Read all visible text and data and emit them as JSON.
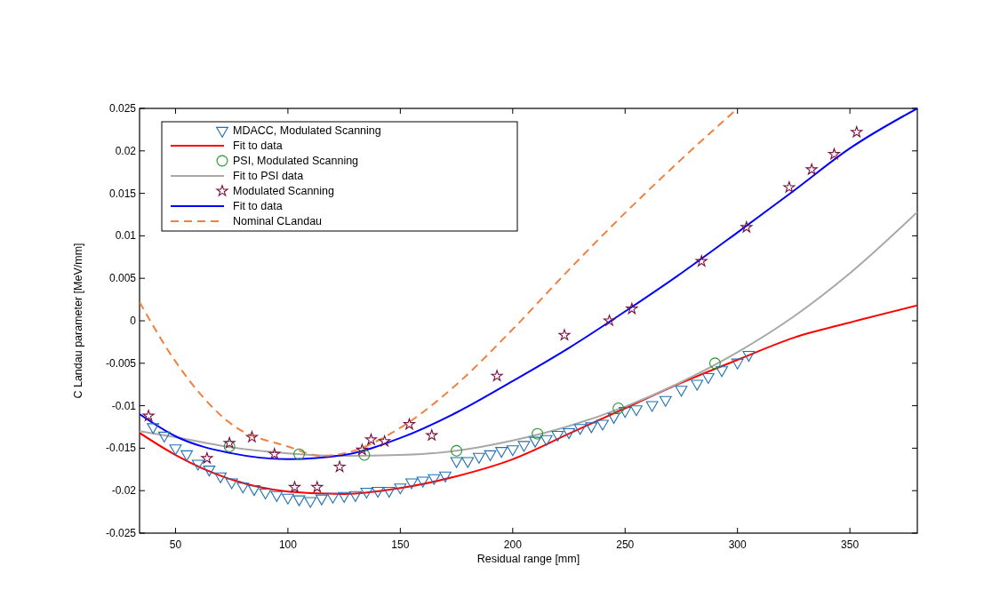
{
  "chart_data": {
    "type": "scatter",
    "xlabel": "Residual range [mm]",
    "ylabel": "C Landau parameter [MeV/mm]",
    "xlim": [
      34,
      380
    ],
    "xticks": [
      50,
      100,
      150,
      200,
      250,
      300,
      350
    ],
    "ylim": [
      -0.025,
      0.025
    ],
    "yticks": [
      -0.025,
      -0.02,
      -0.015,
      -0.01,
      -0.005,
      0,
      0.005,
      0.01,
      0.015,
      0.02,
      0.025
    ],
    "grid": false,
    "legend": "top left",
    "series": [
      {
        "name": "MDACC, Modulated Scanning",
        "marker": "triangle",
        "color": "#1f6fb4",
        "x": [
          40,
          45,
          50,
          55,
          60,
          65,
          70,
          75,
          80,
          85,
          90,
          95,
          100,
          105,
          110,
          115,
          120,
          125,
          130,
          135,
          140,
          145,
          150,
          155,
          160,
          165,
          170,
          175,
          180,
          185,
          190,
          195,
          200,
          205,
          210,
          215,
          220,
          225,
          230,
          235,
          240,
          245,
          250,
          255,
          262,
          268,
          275,
          282,
          287,
          293,
          300,
          305
        ],
        "values": [
          -0.0125,
          -0.0135,
          -0.015,
          -0.0157,
          -0.0168,
          -0.0175,
          -0.0183,
          -0.019,
          -0.0195,
          -0.0198,
          -0.0202,
          -0.0205,
          -0.0208,
          -0.021,
          -0.0212,
          -0.0209,
          -0.0207,
          -0.0206,
          -0.0205,
          -0.0201,
          -0.02,
          -0.02,
          -0.0196,
          -0.019,
          -0.0188,
          -0.0185,
          -0.0182,
          -0.0165,
          -0.0165,
          -0.016,
          -0.0157,
          -0.0153,
          -0.0151,
          -0.0146,
          -0.0141,
          -0.0139,
          -0.0134,
          -0.0131,
          -0.0126,
          -0.0124,
          -0.0121,
          -0.0113,
          -0.0106,
          -0.0104,
          -0.0099,
          -0.0093,
          -0.0081,
          -0.0074,
          -0.0066,
          -0.0058,
          -0.0049,
          -0.004
        ]
      },
      {
        "name": "Fit to data",
        "type": "line",
        "line_style": "solid",
        "color": "#ff0000",
        "x": [
          34,
          50,
          75,
          100,
          125,
          150,
          175,
          200,
          225,
          250,
          275,
          300,
          325,
          350,
          380
        ],
        "values": [
          -0.0132,
          -0.0158,
          -0.0187,
          -0.0201,
          -0.0204,
          -0.0197,
          -0.0183,
          -0.0163,
          -0.0133,
          -0.0103,
          -0.0073,
          -0.0046,
          -0.002,
          -0.0002,
          0.0018
        ]
      },
      {
        "name": "PSI, Modulated Scanning",
        "marker": "circle",
        "color": "#22962a",
        "x": [
          74,
          105,
          134,
          175,
          211,
          247,
          290
        ],
        "values": [
          -0.0148,
          -0.0157,
          -0.0158,
          -0.0153,
          -0.0133,
          -0.0103,
          -0.005
        ]
      },
      {
        "name": "Fit to PSI data",
        "type": "line",
        "line_style": "solid",
        "color": "#a8a8a8",
        "x": [
          34,
          50,
          75,
          100,
          125,
          150,
          175,
          200,
          225,
          250,
          275,
          300,
          325,
          350,
          380
        ],
        "values": [
          -0.013,
          -0.0137,
          -0.0149,
          -0.0156,
          -0.0159,
          -0.0158,
          -0.0153,
          -0.0141,
          -0.0124,
          -0.0101,
          -0.0072,
          -0.0037,
          0.0005,
          0.0056,
          0.0128
        ]
      },
      {
        "name": "Modulated Scanning",
        "marker": "star",
        "color": "#7a1040",
        "x": [
          38,
          64,
          74,
          84,
          94,
          103,
          113,
          123,
          133,
          137,
          143,
          154,
          164,
          193,
          223,
          243,
          253,
          284,
          304,
          323,
          333,
          343,
          353
        ],
        "values": [
          -0.0112,
          -0.0162,
          -0.0144,
          -0.0137,
          -0.0157,
          -0.0196,
          -0.0196,
          -0.0172,
          -0.0152,
          -0.014,
          -0.0142,
          -0.0122,
          -0.0135,
          -0.0065,
          -0.0017,
          0,
          0.0014,
          0.007,
          0.011,
          0.0157,
          0.0178,
          0.0196,
          0.0222
        ]
      },
      {
        "name": "Fit to data",
        "type": "line",
        "line_style": "solid",
        "color": "#0000ff",
        "x": [
          34,
          50,
          75,
          100,
          125,
          150,
          175,
          200,
          225,
          250,
          275,
          300,
          325,
          350,
          380
        ],
        "values": [
          -0.011,
          -0.0136,
          -0.0156,
          -0.0163,
          -0.0158,
          -0.0138,
          -0.0108,
          -0.0071,
          -0.0032,
          0.0011,
          0.0056,
          0.0104,
          0.0153,
          0.0203,
          0.025
        ]
      },
      {
        "name": "Nominal CLandau",
        "type": "line",
        "line_style": "dashed",
        "color": "#f08040",
        "x": [
          34,
          50,
          75,
          100,
          115,
          125,
          150,
          175,
          200,
          225,
          250,
          275,
          300
        ],
        "values": [
          0.0022,
          -0.0048,
          -0.0122,
          -0.0148,
          -0.0159,
          -0.0156,
          -0.0126,
          -0.0075,
          -0.001,
          0.006,
          0.0127,
          0.019,
          0.025
        ]
      }
    ]
  }
}
